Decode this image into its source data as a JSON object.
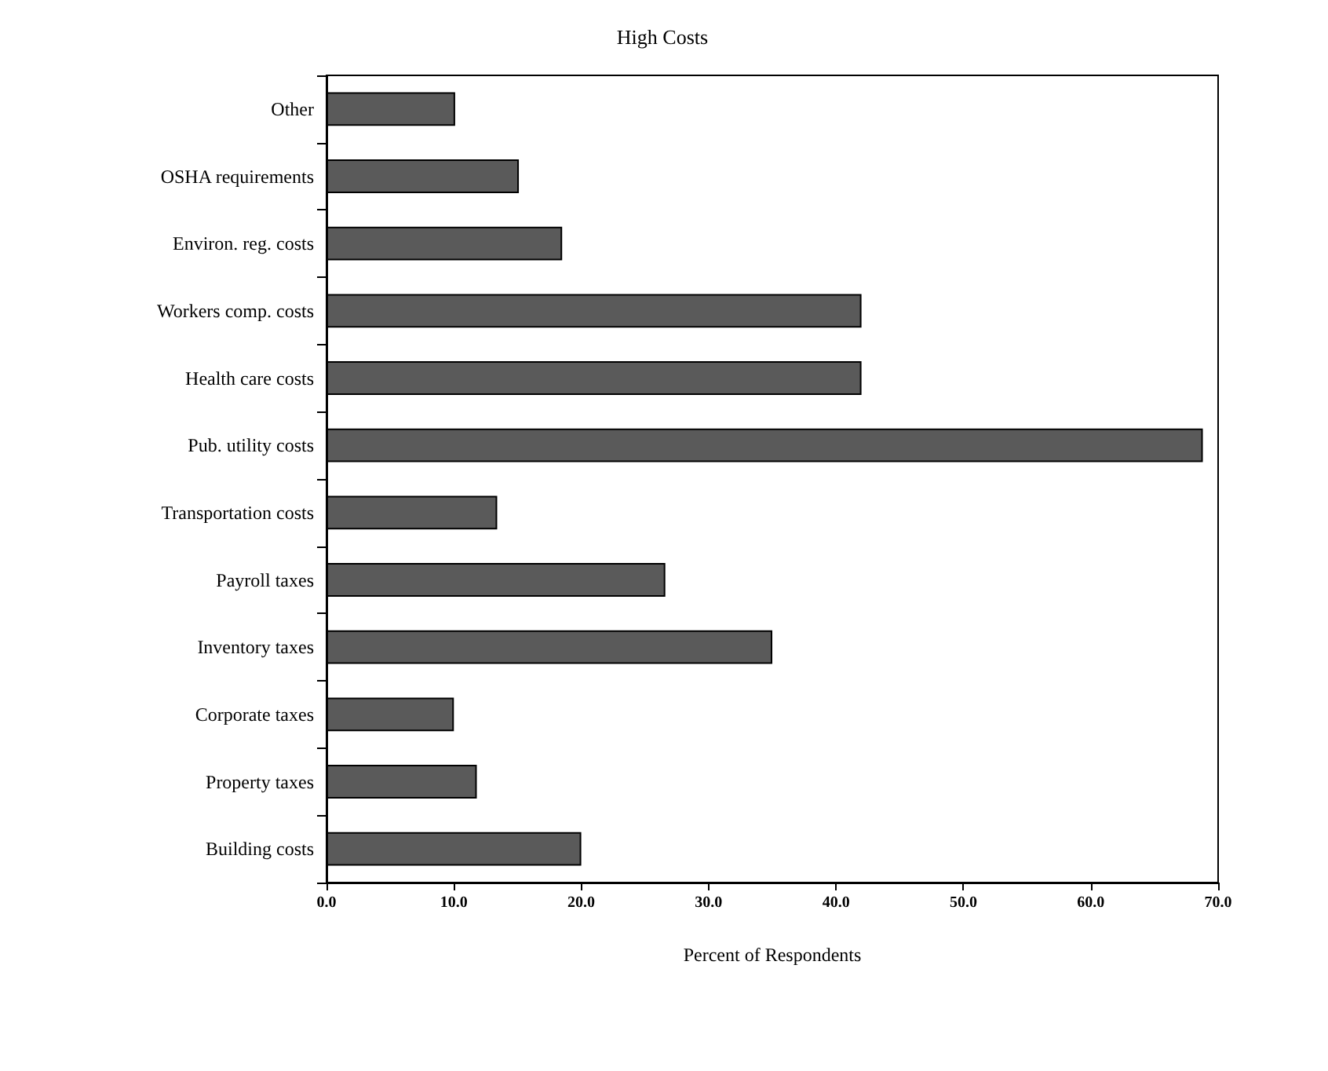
{
  "chart_data": {
    "type": "bar",
    "orientation": "horizontal",
    "title": "High Costs",
    "xlabel": "Percent of Respondents",
    "categories": [
      "Other",
      "OSHA requirements",
      "Environ. reg. costs",
      "Workers comp. costs",
      "Health care costs",
      "Pub. utility costs",
      "Transportation costs",
      "Payroll taxes",
      "Inventory taxes",
      "Corporate taxes",
      "Property taxes",
      "Building costs"
    ],
    "values": [
      10.1,
      15.1,
      18.5,
      42.0,
      42.0,
      68.8,
      13.4,
      26.6,
      35.0,
      10.0,
      11.8,
      20.0
    ],
    "color": "#5a5a5a",
    "xlim": [
      0,
      70
    ],
    "xticks": [
      {
        "value": 0,
        "label": "0.0"
      },
      {
        "value": 10,
        "label": "10.0"
      },
      {
        "value": 20,
        "label": "20.0"
      },
      {
        "value": 30,
        "label": "30.0"
      },
      {
        "value": 40,
        "label": "40.0"
      },
      {
        "value": 50,
        "label": "50.0"
      },
      {
        "value": 60,
        "label": "60.0"
      },
      {
        "value": 70,
        "label": "70.0"
      }
    ],
    "grid": false
  }
}
